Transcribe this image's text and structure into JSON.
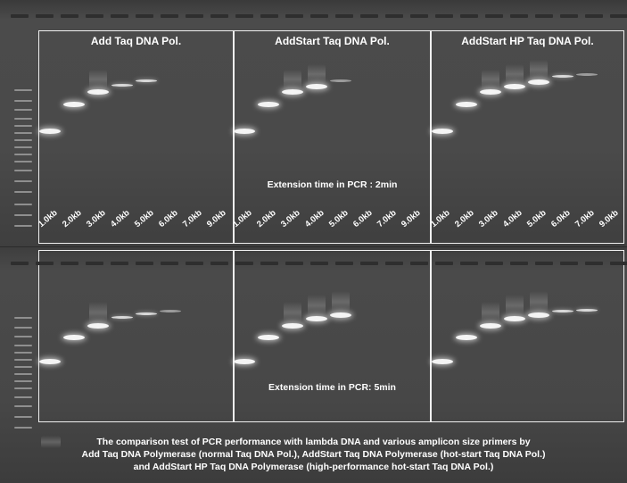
{
  "panels": [
    {
      "title": "Add Taq DNA Pol."
    },
    {
      "title": "AddStart Taq DNA Pol."
    },
    {
      "title": "AddStart HP Taq DNA Pol."
    }
  ],
  "lane_labels": [
    "1.0kb",
    "2.0kb",
    "3.0kb",
    "4.0kb",
    "5.0kb",
    "6.0kb",
    "7.0kb",
    "9.0kb"
  ],
  "notes": {
    "top": "Extension time in PCR : 2min",
    "bottom": "Extension time in PCR: 5min"
  },
  "caption": {
    "line1": "The comparison test of PCR performance with lambda DNA and various amplicon size primers by",
    "line2": "Add Taq DNA Polymerase (normal Taq DNA Pol.), AddStart Taq DNA Polymerase (hot-start Taq DNA Pol.)",
    "line3": "and AddStart HP Taq DNA Polymerase (high-performance hot-start Taq DNA Pol.)"
  }
}
